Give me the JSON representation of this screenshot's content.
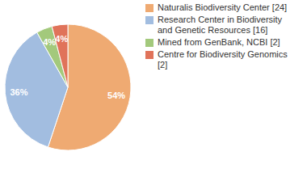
{
  "chart_data": {
    "type": "pie",
    "categories": [
      "Naturalis Biodiversity Center [24]",
      "Research Center in Biodiversity and Genetic Resources [16]",
      "Mined from GenBank, NCBI [2]",
      "Centre for Biodiversity Genomics [2]"
    ],
    "values": [
      54,
      36,
      4,
      4
    ],
    "value_labels": [
      "54%",
      "36%",
      "4%",
      "4%"
    ],
    "colors": [
      "#efaa72",
      "#a2bde0",
      "#a3c97c",
      "#e0735a"
    ],
    "data_labels": true,
    "legend": "right"
  }
}
